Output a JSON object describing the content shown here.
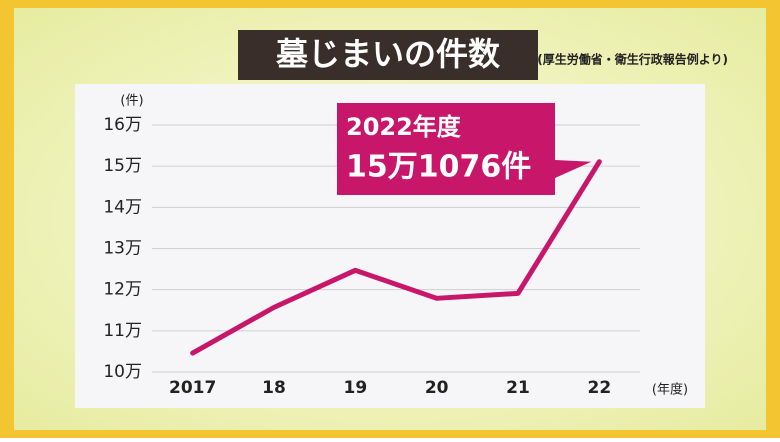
{
  "chart_data": {
    "type": "line",
    "title": "墓じまいの件数",
    "source": "(厚生労働省・衛生行政報告例より)",
    "y_unit": "(件)",
    "x_unit": "(年度)",
    "categories": [
      "2017",
      "18",
      "19",
      "20",
      "21",
      "22"
    ],
    "values": [
      104600,
      115700,
      124700,
      117900,
      119100,
      151076
    ],
    "value_labels": [
      null,
      null,
      null,
      null,
      null,
      "15万1076件"
    ],
    "annotation": "2022年度",
    "color": "#c8176a",
    "ylim": [
      100000,
      160000
    ],
    "yticks": [
      {
        "value": 100000,
        "label": "10万"
      },
      {
        "value": 110000,
        "label": "11万"
      },
      {
        "value": 120000,
        "label": "12万"
      },
      {
        "value": 130000,
        "label": "13万"
      },
      {
        "value": 140000,
        "label": "14万"
      },
      {
        "value": 150000,
        "label": "15万"
      },
      {
        "value": 160000,
        "label": "16万"
      }
    ],
    "grid": true
  }
}
